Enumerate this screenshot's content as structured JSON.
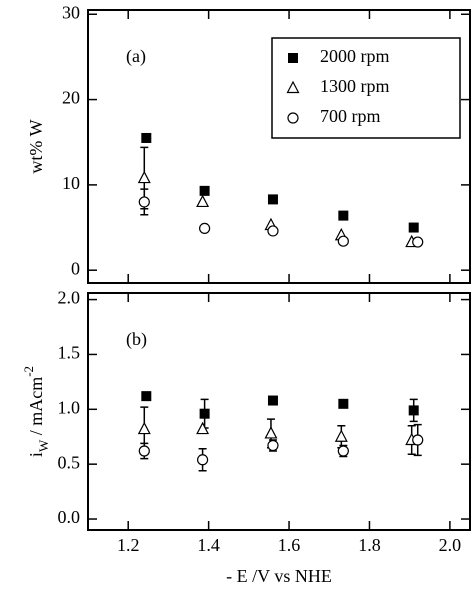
{
  "chart_data": [
    {
      "type": "scatter",
      "annotation": "(a)",
      "ylabel": [
        {
          "text": "wt% W"
        }
      ],
      "xlim": [
        1.1,
        2.05
      ],
      "xticks": [
        1.2,
        1.4,
        1.6,
        1.8,
        {
          "value": 2,
          "label": "2.0"
        }
      ],
      "show_xtick_labels": false,
      "ylim": [
        -1.5,
        30.5
      ],
      "yticks": [
        0,
        10,
        20,
        30
      ],
      "legend": "upper right",
      "series": [
        {
          "name": "2000 rpm",
          "marker": "square",
          "color": "#000000",
          "x": [
            1.245,
            1.39,
            1.56,
            1.735,
            1.91
          ],
          "values": [
            15.5,
            9.3,
            8.3,
            6.4,
            5.0
          ],
          "errors": [
            null,
            null,
            null,
            null,
            null
          ]
        },
        {
          "name": "1300 rpm",
          "marker": "triangle",
          "color": "#000000",
          "x": [
            1.24,
            1.385,
            1.555,
            1.73,
            1.905
          ],
          "values": [
            10.8,
            8.0,
            5.3,
            4.1,
            3.3
          ],
          "errors": [
            3.6,
            null,
            null,
            null,
            null
          ]
        },
        {
          "name": "700 rpm",
          "marker": "circle",
          "color": "#000000",
          "x": [
            1.24,
            1.39,
            1.56,
            1.735,
            1.92
          ],
          "values": [
            8.0,
            4.9,
            4.6,
            3.4,
            3.3
          ],
          "errors": [
            1.5,
            null,
            null,
            null,
            null
          ]
        }
      ]
    },
    {
      "type": "scatter",
      "annotation": "(b)",
      "ylabel": [
        {
          "text": "i"
        },
        {
          "text": "W",
          "shift": "sub"
        },
        {
          "text": " / mAcm"
        },
        {
          "text": "-2",
          "shift": "super"
        }
      ],
      "xlabel": "- E /V vs NHE",
      "xlim": [
        1.1,
        2.05
      ],
      "xticks": [
        1.2,
        1.4,
        1.6,
        1.8,
        {
          "value": 2,
          "label": "2.0"
        }
      ],
      "show_xtick_labels": true,
      "ylim": [
        -0.1,
        2.06
      ],
      "yticks": [
        {
          "value": 0,
          "label": "0.0"
        },
        0.5,
        {
          "value": 1,
          "label": "1.0"
        },
        1.5,
        {
          "value": 2,
          "label": "2.0"
        }
      ],
      "series": [
        {
          "name": "2000 rpm",
          "marker": "square",
          "color": "#000000",
          "x": [
            1.245,
            1.39,
            1.56,
            1.735,
            1.91
          ],
          "values": [
            1.12,
            0.96,
            1.08,
            1.05,
            0.99
          ],
          "errors": [
            null,
            0.13,
            null,
            null,
            0.1
          ]
        },
        {
          "name": "1300 rpm",
          "marker": "triangle",
          "color": "#000000",
          "x": [
            1.24,
            1.385,
            1.555,
            1.73,
            1.905
          ],
          "values": [
            0.82,
            0.82,
            0.78,
            0.75,
            0.72
          ],
          "errors": [
            0.2,
            null,
            0.13,
            0.1,
            0.13
          ]
        },
        {
          "name": "700 rpm",
          "marker": "circle",
          "color": "#000000",
          "x": [
            1.24,
            1.385,
            1.56,
            1.735,
            1.92
          ],
          "values": [
            0.62,
            0.54,
            0.67,
            0.62,
            0.72
          ],
          "errors": [
            0.07,
            0.1,
            0.05,
            0.05,
            0.14
          ]
        }
      ]
    }
  ]
}
